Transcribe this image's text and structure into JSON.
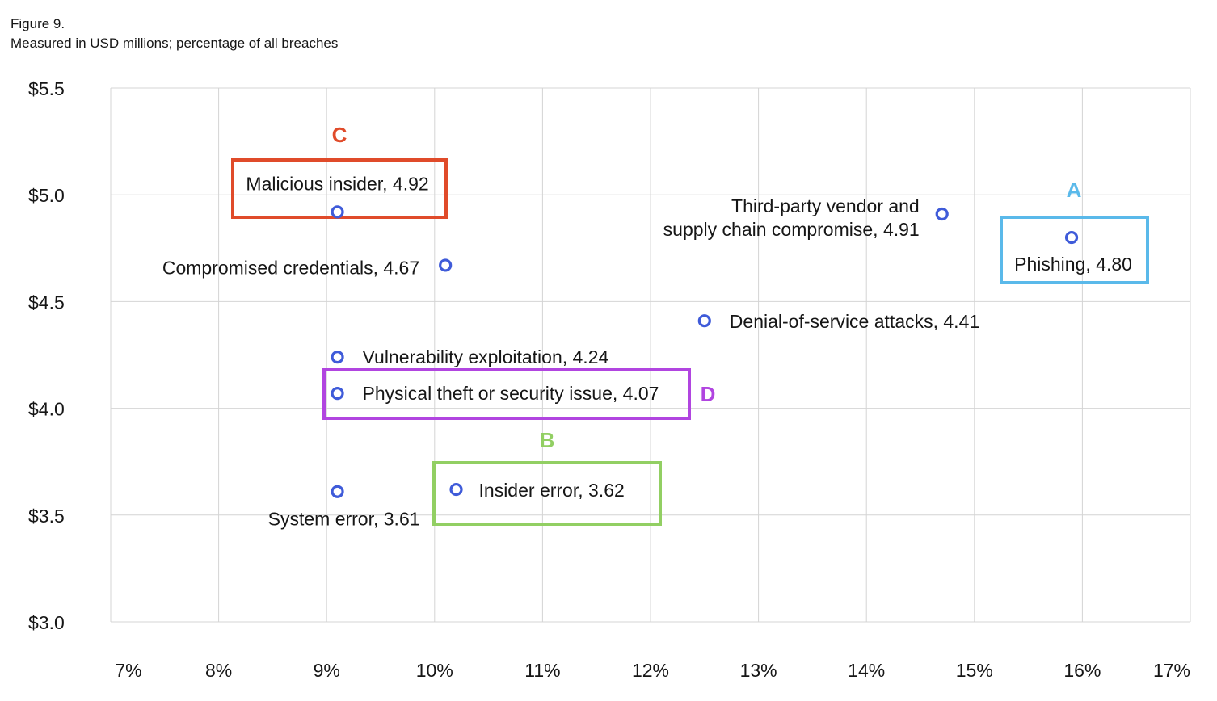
{
  "header": {
    "figure": "Figure 9.",
    "subtitle": "Measured in USD millions; percentage of all breaches"
  },
  "chart_data": {
    "type": "scatter",
    "title": "",
    "xlabel": "",
    "ylabel": "",
    "xlim": [
      7,
      17
    ],
    "ylim": [
      3.0,
      5.5
    ],
    "grid": true,
    "x_ticks": [
      "7%",
      "8%",
      "9%",
      "10%",
      "11%",
      "12%",
      "13%",
      "14%",
      "15%",
      "16%",
      "17%"
    ],
    "y_ticks": [
      "$3.0",
      "$3.5",
      "$4.0",
      "$4.5",
      "$5.0",
      "$5.5"
    ],
    "marker_color": "#3f5bd9",
    "points": [
      {
        "x": 9.1,
        "y": 4.92,
        "label": "Malicious insider, 4.92"
      },
      {
        "x": 14.7,
        "y": 4.91,
        "lines": [
          "Third-party vendor and",
          "supply chain compromise, 4.91"
        ]
      },
      {
        "x": 15.9,
        "y": 4.8,
        "label": "Phishing, 4.80"
      },
      {
        "x": 10.1,
        "y": 4.67,
        "label": "Compromised credentials, 4.67"
      },
      {
        "x": 12.5,
        "y": 4.41,
        "label": "Denial-of-service attacks, 4.41"
      },
      {
        "x": 9.1,
        "y": 4.24,
        "label": "Vulnerability exploitation, 4.24"
      },
      {
        "x": 9.1,
        "y": 4.07,
        "label": "Physical theft or security issue, 4.07"
      },
      {
        "x": 10.2,
        "y": 3.62,
        "label": "Insider error, 3.62"
      },
      {
        "x": 9.1,
        "y": 3.61,
        "label": "System error, 3.61"
      }
    ],
    "highlights": [
      {
        "letter": "A",
        "target": "Phishing, 4.80",
        "color": "#5ab9ea"
      },
      {
        "letter": "B",
        "target": "Insider error, 3.62",
        "color": "#92cf63"
      },
      {
        "letter": "C",
        "target": "Malicious insider, 4.92",
        "color": "#e04b2a"
      },
      {
        "letter": "D",
        "target": "Physical theft or security issue, 4.07",
        "color": "#b145e0"
      }
    ]
  }
}
